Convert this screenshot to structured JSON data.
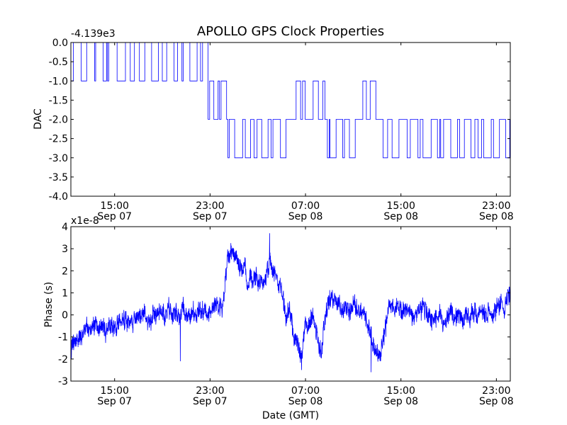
{
  "title": "APOLLO GPS Clock Properties",
  "colors": {
    "line": "#0000ff",
    "axes": "#000000",
    "background": "#ffffff"
  },
  "chart_data": [
    {
      "type": "line",
      "name": "dac",
      "ylabel": "DAC",
      "offset_label": "-4.139e3",
      "ylim": [
        -4.0,
        0.0
      ],
      "yticks": [
        0.0,
        -0.5,
        -1.0,
        -1.5,
        -2.0,
        -2.5,
        -3.0,
        -3.5,
        -4.0
      ],
      "ytick_labels": [
        "0.0",
        "-0.5",
        "-1.0",
        "-1.5",
        "-2.0",
        "-2.5",
        "-3.0",
        "-3.5",
        "-4.0"
      ],
      "xlim": [
        "2007-09-07 11:20",
        "2007-09-09 00:10"
      ],
      "xtick_labels": [
        [
          "15:00",
          "Sep 07"
        ],
        [
          "23:00",
          "Sep 07"
        ],
        [
          "07:00",
          "Sep 08"
        ],
        [
          "15:00",
          "Sep 08"
        ],
        [
          "23:00",
          "Sep 08"
        ]
      ],
      "grid": false,
      "segments": [
        {
          "start": "2007-09-07 11:20",
          "end": "2007-09-07 22:50",
          "low": -1.0,
          "high": 0.0
        },
        {
          "start": "2007-09-07 22:50",
          "end": "2007-09-08 00:30",
          "low": -2.0,
          "high": -1.0
        },
        {
          "start": "2007-09-08 00:30",
          "end": "2007-09-08 05:30",
          "low": -3.0,
          "high": -2.0
        },
        {
          "start": "2007-09-08 05:30",
          "end": "2007-09-08 08:50",
          "low": -2.0,
          "high": -1.0
        },
        {
          "start": "2007-09-08 08:50",
          "end": "2007-09-08 11:10",
          "low": -3.0,
          "high": -2.0
        },
        {
          "start": "2007-09-08 11:10",
          "end": "2007-09-08 13:30",
          "low": -2.0,
          "high": -1.0
        },
        {
          "start": "2007-09-08 13:30",
          "end": "2007-09-09 00:10",
          "low": -3.0,
          "high": -2.0
        }
      ]
    },
    {
      "type": "line",
      "name": "phase",
      "ylabel": "Phase (s)",
      "xlabel": "Date (GMT)",
      "offset_label": "x1e-8",
      "ylim": [
        -3,
        4
      ],
      "yticks": [
        -3,
        -2,
        -1,
        0,
        1,
        2,
        3,
        4
      ],
      "ytick_labels": [
        "-3",
        "-2",
        "-1",
        "0",
        "1",
        "2",
        "3",
        "4"
      ],
      "xlim": [
        "2007-09-07 11:20",
        "2007-09-09 00:10"
      ],
      "xtick_labels": [
        [
          "15:00",
          "Sep 07"
        ],
        [
          "23:00",
          "Sep 07"
        ],
        [
          "07:00",
          "Sep 08"
        ],
        [
          "15:00",
          "Sep 08"
        ],
        [
          "23:00",
          "Sep 08"
        ]
      ],
      "grid": false,
      "envelope": [
        {
          "t": "2007-09-07 11:20",
          "y": -1.6
        },
        {
          "t": "2007-09-07 12:00",
          "y": -1.0
        },
        {
          "t": "2007-09-07 13:00",
          "y": -0.6
        },
        {
          "t": "2007-09-07 14:00",
          "y": -0.7
        },
        {
          "t": "2007-09-07 15:00",
          "y": -0.5
        },
        {
          "t": "2007-09-07 16:00",
          "y": -0.4
        },
        {
          "t": "2007-09-07 17:00",
          "y": -0.2
        },
        {
          "t": "2007-09-07 18:00",
          "y": 0.0
        },
        {
          "t": "2007-09-07 19:00",
          "y": 0.2
        },
        {
          "t": "2007-09-07 20:00",
          "y": 0.0
        },
        {
          "t": "2007-09-07 21:00",
          "y": 0.1
        },
        {
          "t": "2007-09-07 22:00",
          "y": 0.0
        },
        {
          "t": "2007-09-07 23:00",
          "y": 0.1
        },
        {
          "t": "2007-09-08 00:00",
          "y": 0.4
        },
        {
          "t": "2007-09-08 00:30",
          "y": 2.7
        },
        {
          "t": "2007-09-08 01:30",
          "y": 2.2
        },
        {
          "t": "2007-09-08 02:30",
          "y": 1.6
        },
        {
          "t": "2007-09-08 03:30",
          "y": 1.4
        },
        {
          "t": "2007-09-08 04:00",
          "y": 2.3
        },
        {
          "t": "2007-09-08 05:00",
          "y": 1.0
        },
        {
          "t": "2007-09-08 06:00",
          "y": -0.8
        },
        {
          "t": "2007-09-08 06:40",
          "y": -2.0
        },
        {
          "t": "2007-09-08 07:00",
          "y": -0.2
        },
        {
          "t": "2007-09-08 07:40",
          "y": -0.3
        },
        {
          "t": "2007-09-08 08:20",
          "y": -1.7
        },
        {
          "t": "2007-09-08 09:00",
          "y": 1.0
        },
        {
          "t": "2007-09-08 10:00",
          "y": 0.3
        },
        {
          "t": "2007-09-08 11:00",
          "y": 0.5
        },
        {
          "t": "2007-09-08 12:00",
          "y": 0.0
        },
        {
          "t": "2007-09-08 12:40",
          "y": -1.3
        },
        {
          "t": "2007-09-08 13:20",
          "y": -1.8
        },
        {
          "t": "2007-09-08 14:00",
          "y": 0.4
        },
        {
          "t": "2007-09-08 15:00",
          "y": 0.2
        },
        {
          "t": "2007-09-08 16:00",
          "y": 0.0
        },
        {
          "t": "2007-09-08 17:00",
          "y": 0.2
        },
        {
          "t": "2007-09-08 18:00",
          "y": -0.1
        },
        {
          "t": "2007-09-08 19:00",
          "y": 0.0
        },
        {
          "t": "2007-09-08 20:00",
          "y": -0.2
        },
        {
          "t": "2007-09-08 21:00",
          "y": 0.0
        },
        {
          "t": "2007-09-08 22:00",
          "y": 0.0
        },
        {
          "t": "2007-09-08 23:00",
          "y": 0.2
        },
        {
          "t": "2007-09-09 00:10",
          "y": 0.8
        }
      ],
      "peaks": [
        {
          "t": "2007-09-08 04:00",
          "y": 3.7
        },
        {
          "t": "2007-09-08 06:40",
          "y": -2.5
        },
        {
          "t": "2007-09-08 12:30",
          "y": -2.6
        },
        {
          "t": "2007-09-07 20:30",
          "y": -2.1
        }
      ]
    }
  ]
}
